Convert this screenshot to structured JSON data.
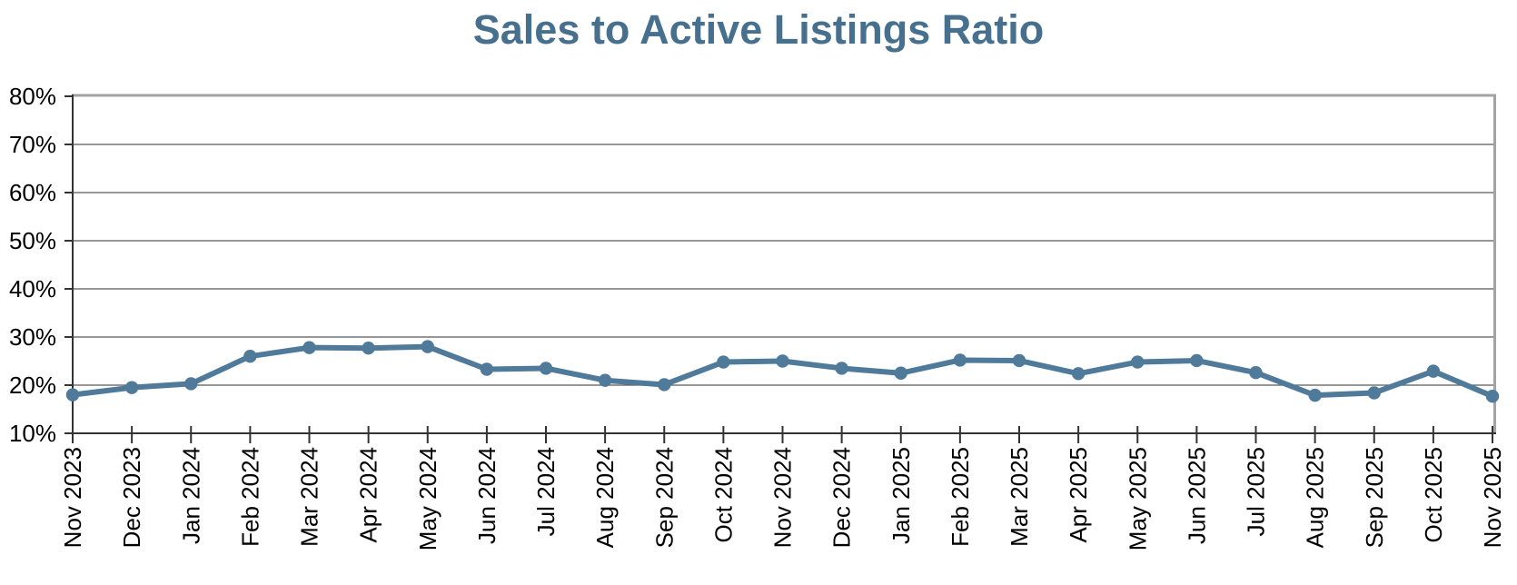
{
  "chart_data": {
    "type": "line",
    "title": "Sales to Active Listings Ratio",
    "categories": [
      "Nov 2023",
      "Dec 2023",
      "Jan 2024",
      "Feb 2024",
      "Mar 2024",
      "Apr 2024",
      "May 2024",
      "Jun 2024",
      "Jul 2024",
      "Aug 2024",
      "Sep 2024",
      "Oct 2024",
      "Nov 2024",
      "Dec 2024",
      "Jan 2025",
      "Feb 2025",
      "Mar 2025",
      "Apr 2025",
      "May 2025",
      "Jun 2025",
      "Jul 2025",
      "Aug 2025",
      "Sep 2025",
      "Oct 2025",
      "Nov 2025"
    ],
    "series": [
      {
        "name": "Sales to Active Listings Ratio",
        "values": [
          18.0,
          19.5,
          20.3,
          26.0,
          27.8,
          27.7,
          28.0,
          23.3,
          23.5,
          21.0,
          20.1,
          24.8,
          25.0,
          23.5,
          22.5,
          25.2,
          25.1,
          22.4,
          24.8,
          25.1,
          22.6,
          17.9,
          18.4,
          22.9,
          17.7
        ]
      }
    ],
    "xlabel": "",
    "ylabel": "",
    "ylim": [
      10,
      80
    ],
    "ytick_step": 10,
    "ytick_format": "{v}%",
    "grid": "horizontal",
    "legend_position": "none",
    "colors": {
      "line": "#4f7a99",
      "marker": "#4f7a99",
      "title": "#46708d",
      "grid": "#595959",
      "axis": "#333333",
      "plot_border": "#a3a3a3",
      "tick_label": "#000000"
    }
  }
}
